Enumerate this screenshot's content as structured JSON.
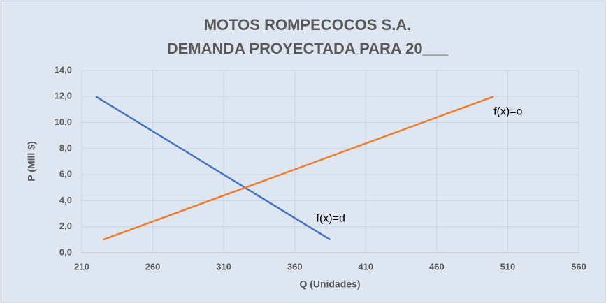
{
  "chart_data": {
    "type": "line",
    "title": "MOTOS ROMPECOCOS S.A.",
    "subtitle": "DEMANDA PROYECTADA PARA 20___",
    "xlabel": "Q (Unidades)",
    "ylabel": "P (Mill $)",
    "series": [
      {
        "name": "f(x)=d",
        "color": "#4472c4",
        "x": [
          220,
          385
        ],
        "values": [
          12,
          1
        ]
      },
      {
        "name": "f(x)=o",
        "color": "#ed7d31",
        "x": [
          225,
          500
        ],
        "values": [
          1,
          12
        ]
      }
    ],
    "xlim": [
      210,
      560
    ],
    "xticks": [
      210,
      260,
      310,
      360,
      410,
      460,
      510,
      560
    ],
    "ylim": [
      0,
      14
    ],
    "yticks": [
      {
        "value": 0,
        "label": "0,0"
      },
      {
        "value": 2,
        "label": "2,0"
      },
      {
        "value": 4,
        "label": "4,0"
      },
      {
        "value": 6,
        "label": "6,0"
      },
      {
        "value": 8,
        "label": "8,0"
      },
      {
        "value": 10,
        "label": "10,0"
      },
      {
        "value": 12,
        "label": "12,0"
      },
      {
        "value": 14,
        "label": "14,0"
      }
    ],
    "grid": true
  }
}
